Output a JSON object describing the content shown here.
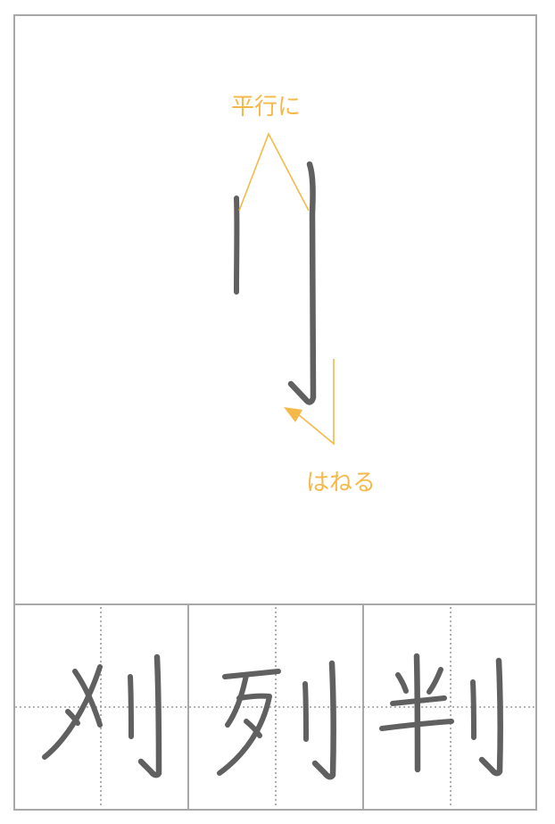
{
  "annotations": {
    "parallel_note": "平行に",
    "hane_note": "はねる"
  },
  "examples": [
    {
      "kanji": "刈"
    },
    {
      "kanji": "列"
    },
    {
      "kanji": "判"
    }
  ],
  "colors": {
    "annotation": "#f5b94a",
    "stroke": "#606060",
    "border": "#a8a8a8",
    "grid_dots": "#9a9a9a"
  }
}
